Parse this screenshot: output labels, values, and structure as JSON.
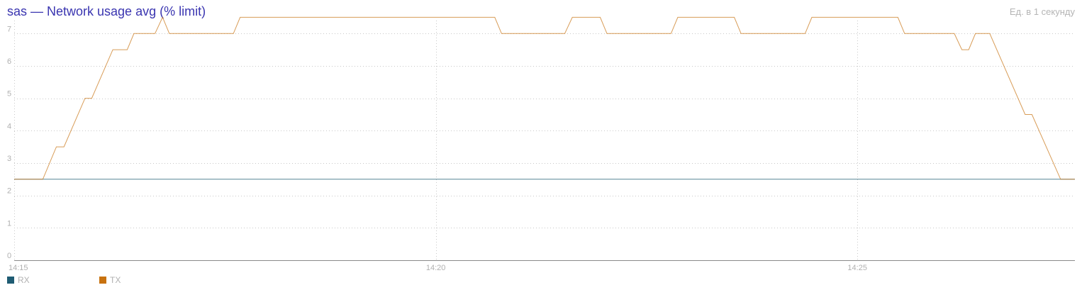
{
  "header": {
    "title": "sas — Network usage avg (% limit)",
    "units": "Ед. в 1 секунду"
  },
  "chart_data": {
    "type": "line",
    "title": "sas — Network usage avg (% limit)",
    "xlabel": "",
    "ylabel": "",
    "x_ticks": [
      {
        "label": "14:15",
        "minute": 0
      },
      {
        "label": "14:20",
        "minute": 5
      },
      {
        "label": "14:25",
        "minute": 10
      }
    ],
    "y_ticks": [
      0,
      1,
      2,
      3,
      4,
      5,
      6,
      7
    ],
    "ylim": [
      0,
      7.4
    ],
    "xlim": [
      0,
      12.58
    ],
    "grid": true,
    "legend": "bottom-left",
    "series": [
      {
        "name": "RX",
        "color": "#1f5c73",
        "points": [
          [
            0,
            2.5
          ],
          [
            12.58,
            2.5
          ]
        ]
      },
      {
        "name": "TX",
        "color": "#c8720f",
        "points": [
          [
            0,
            2.5
          ],
          [
            0.34,
            2.5
          ],
          [
            0.5,
            3.5
          ],
          [
            0.59,
            3.5
          ],
          [
            0.84,
            5
          ],
          [
            0.92,
            5
          ],
          [
            1.17,
            6.5
          ],
          [
            1.34,
            6.5
          ],
          [
            1.42,
            7
          ],
          [
            1.67,
            7
          ],
          [
            1.76,
            7.5
          ],
          [
            1.84,
            7
          ],
          [
            2.6,
            7
          ],
          [
            2.68,
            7.5
          ],
          [
            5.7,
            7.5
          ],
          [
            5.78,
            7
          ],
          [
            6.53,
            7
          ],
          [
            6.62,
            7.5
          ],
          [
            6.95,
            7.5
          ],
          [
            7.03,
            7
          ],
          [
            7.79,
            7
          ],
          [
            7.87,
            7.5
          ],
          [
            8.54,
            7.5
          ],
          [
            8.62,
            7
          ],
          [
            9.38,
            7
          ],
          [
            9.46,
            7.5
          ],
          [
            10.48,
            7.5
          ],
          [
            10.56,
            7
          ],
          [
            11.15,
            7
          ],
          [
            11.24,
            6.5
          ],
          [
            11.32,
            6.5
          ],
          [
            11.4,
            7
          ],
          [
            11.57,
            7
          ],
          [
            11.99,
            4.5
          ],
          [
            12.07,
            4.5
          ],
          [
            12.41,
            2.5
          ],
          [
            12.58,
            2.5
          ]
        ]
      }
    ]
  }
}
